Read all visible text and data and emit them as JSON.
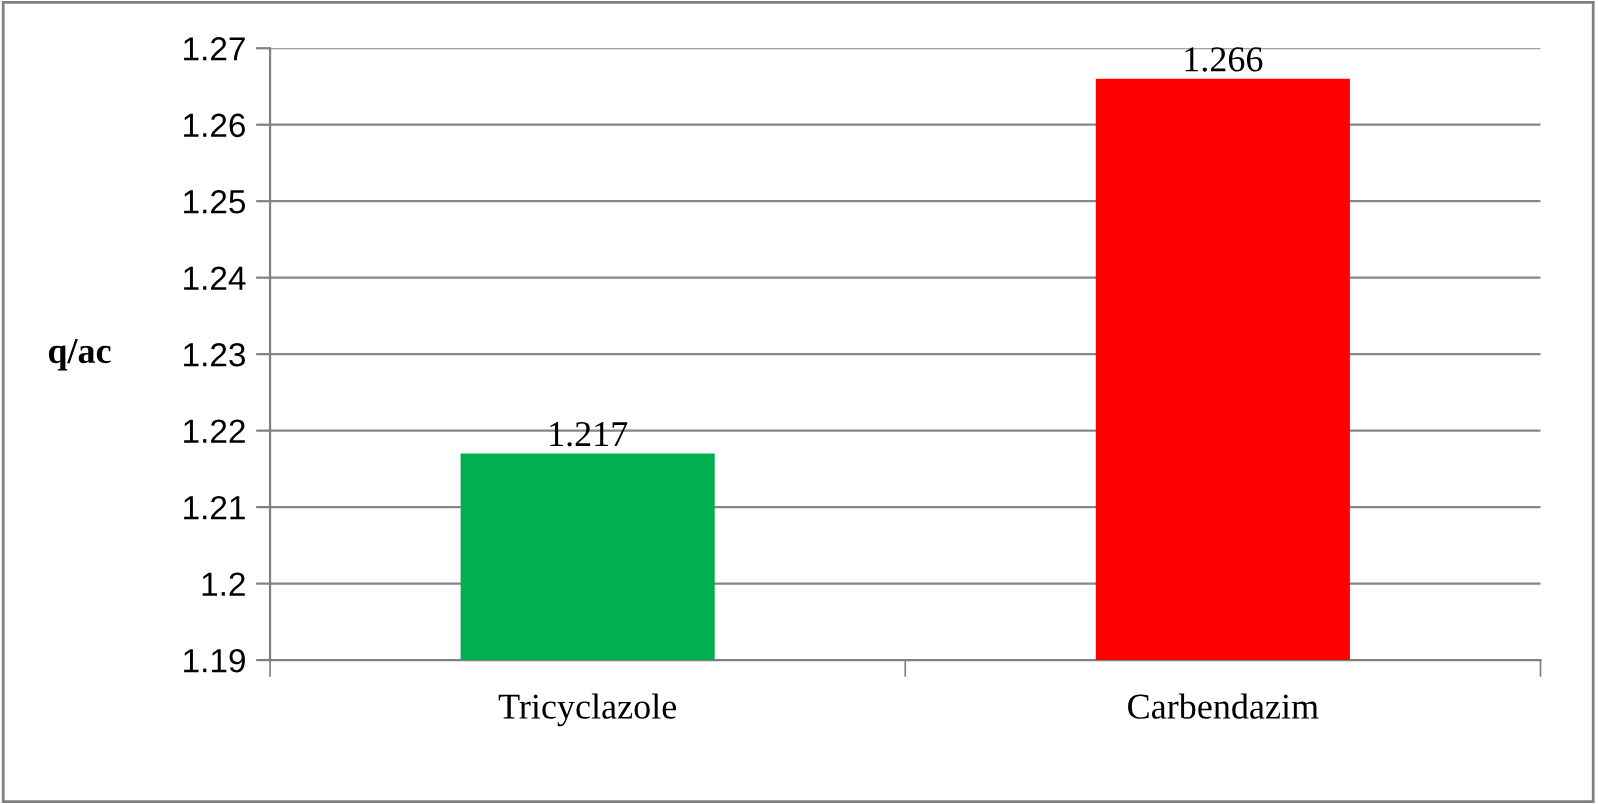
{
  "chart_data": {
    "type": "bar",
    "ylabel": "q/ac",
    "categories": [
      "Tricyclazole",
      "Carbendazim"
    ],
    "values": [
      1.217,
      1.266
    ],
    "colors": [
      "#00b050",
      "#ff0000"
    ],
    "ylim": [
      1.19,
      1.27
    ],
    "yticks": [
      1.19,
      1.2,
      1.21,
      1.22,
      1.23,
      1.24,
      1.25,
      1.26,
      1.27
    ],
    "grid": "y",
    "data_labels": true
  }
}
